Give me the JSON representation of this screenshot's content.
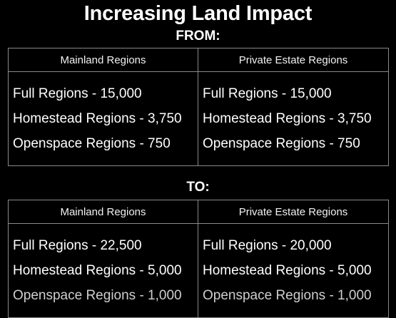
{
  "title": "Increasing Land Impact",
  "from": {
    "label": "FROM:",
    "headers": [
      "Mainland Regions",
      "Private Estate Regions"
    ],
    "mainland": [
      "Full Regions - 15,000",
      "Homestead Regions - 3,750",
      "Openspace Regions - 750"
    ],
    "private_estate": [
      "Full Regions - 15,000",
      "Homestead Regions - 3,750",
      "Openspace Regions - 750"
    ]
  },
  "to": {
    "label": "TO:",
    "headers": [
      "Mainland Regions",
      "Private Estate Regions"
    ],
    "mainland": [
      "Full Regions - 22,500",
      "Homestead Regions - 5,000",
      "Openspace Regions - 1,000"
    ],
    "private_estate": [
      "Full Regions - 20,000",
      "Homestead Regions - 5,000",
      "Openspace Regions - 1,000"
    ]
  }
}
